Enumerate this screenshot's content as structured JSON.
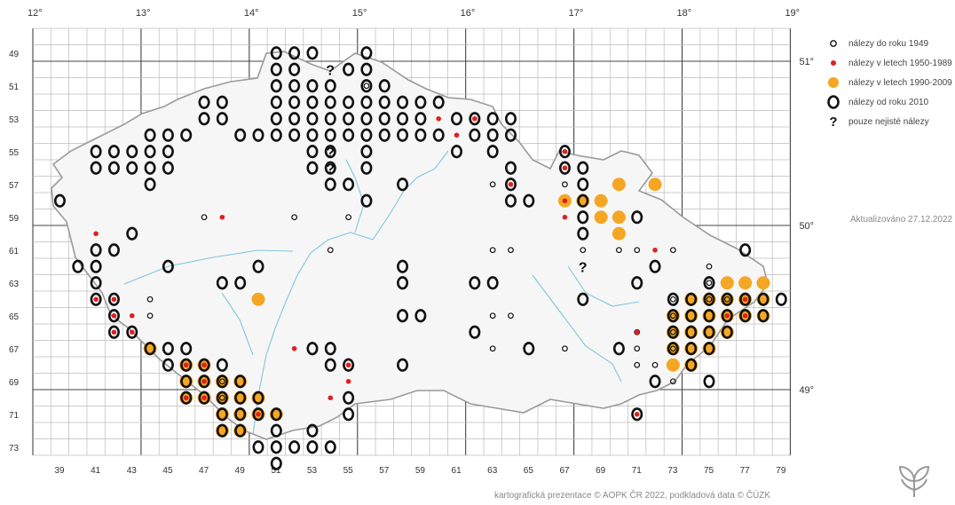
{
  "map": {
    "lon_labels": [
      "12°",
      "13°",
      "14°",
      "15°",
      "16°",
      "17°",
      "18°",
      "19°"
    ],
    "lat_labels": [
      "51°",
      "50°",
      "49°"
    ],
    "row_labels": [
      "49",
      "51",
      "53",
      "55",
      "57",
      "59",
      "61",
      "63",
      "65",
      "67",
      "69",
      "71",
      "73"
    ],
    "col_labels": [
      "39",
      "41",
      "43",
      "45",
      "47",
      "49",
      "51",
      "53",
      "55",
      "57",
      "59",
      "61",
      "63",
      "65",
      "67",
      "69",
      "71",
      "73",
      "75",
      "77",
      "79"
    ]
  },
  "legend": {
    "items": [
      {
        "symbol": "small-ring",
        "label": "nálezy do roku 1949"
      },
      {
        "symbol": "red-dot",
        "label": "nálezy v letech 1950-1989"
      },
      {
        "symbol": "orange-dot",
        "label": "nálezy v letech 1990-2009"
      },
      {
        "symbol": "big-ring",
        "label": "nálezy od roku 2010"
      },
      {
        "symbol": "question",
        "label": "pouze nejisté nálezy"
      }
    ]
  },
  "update_text": "Aktualizováno 27.12.2022",
  "credit_text": "kartografická prezentace © AOPK ČR 2022, podkladová data © ČÚZK",
  "colors": {
    "orange": "#f5a623",
    "red": "#e02020",
    "ring": "#111111",
    "river": "#7fc8dd",
    "border": "#999999"
  },
  "records": {
    "ring": [
      [
        49,
        51
      ],
      [
        49,
        52
      ],
      [
        49,
        53
      ],
      [
        49,
        56
      ],
      [
        50,
        51
      ],
      [
        50,
        52
      ],
      [
        50,
        55
      ],
      [
        50,
        56
      ],
      [
        51,
        51
      ],
      [
        51,
        52
      ],
      [
        51,
        53
      ],
      [
        51,
        54
      ],
      [
        51,
        56
      ],
      [
        51,
        57
      ],
      [
        52,
        47
      ],
      [
        52,
        48
      ],
      [
        52,
        51
      ],
      [
        52,
        52
      ],
      [
        52,
        53
      ],
      [
        52,
        54
      ],
      [
        52,
        55
      ],
      [
        52,
        56
      ],
      [
        52,
        57
      ],
      [
        52,
        58
      ],
      [
        52,
        59
      ],
      [
        52,
        60
      ],
      [
        53,
        47
      ],
      [
        53,
        48
      ],
      [
        53,
        51
      ],
      [
        53,
        52
      ],
      [
        53,
        53
      ],
      [
        53,
        54
      ],
      [
        53,
        55
      ],
      [
        53,
        56
      ],
      [
        53,
        57
      ],
      [
        53,
        58
      ],
      [
        53,
        59
      ],
      [
        53,
        61
      ],
      [
        53,
        62
      ],
      [
        53,
        63
      ],
      [
        53,
        64
      ],
      [
        54,
        44
      ],
      [
        54,
        45
      ],
      [
        54,
        46
      ],
      [
        54,
        49
      ],
      [
        54,
        50
      ],
      [
        54,
        51
      ],
      [
        54,
        52
      ],
      [
        54,
        53
      ],
      [
        54,
        54
      ],
      [
        54,
        55
      ],
      [
        54,
        56
      ],
      [
        54,
        57
      ],
      [
        54,
        58
      ],
      [
        54,
        59
      ],
      [
        54,
        60
      ],
      [
        54,
        62
      ],
      [
        54,
        63
      ],
      [
        54,
        64
      ],
      [
        55,
        41
      ],
      [
        55,
        42
      ],
      [
        55,
        43
      ],
      [
        55,
        44
      ],
      [
        55,
        45
      ],
      [
        55,
        53
      ],
      [
        55,
        54
      ],
      [
        55,
        56
      ],
      [
        55,
        61
      ],
      [
        55,
        63
      ],
      [
        55,
        67
      ],
      [
        56,
        41
      ],
      [
        56,
        42
      ],
      [
        56,
        43
      ],
      [
        56,
        44
      ],
      [
        56,
        45
      ],
      [
        56,
        53
      ],
      [
        56,
        54
      ],
      [
        56,
        56
      ],
      [
        56,
        64
      ],
      [
        56,
        67
      ],
      [
        56,
        68
      ],
      [
        57,
        44
      ],
      [
        57,
        54
      ],
      [
        57,
        55
      ],
      [
        57,
        58
      ],
      [
        57,
        64
      ],
      [
        57,
        68
      ],
      [
        58,
        39
      ],
      [
        58,
        56
      ],
      [
        58,
        64
      ],
      [
        58,
        65
      ],
      [
        58,
        68
      ],
      [
        59,
        68
      ],
      [
        59,
        71
      ],
      [
        60,
        43
      ],
      [
        60,
        68
      ],
      [
        61,
        41
      ],
      [
        61,
        42
      ],
      [
        61,
        77
      ],
      [
        62,
        40
      ],
      [
        62,
        41
      ],
      [
        62,
        45
      ],
      [
        62,
        50
      ],
      [
        62,
        58
      ],
      [
        62,
        72
      ],
      [
        63,
        41
      ],
      [
        63,
        48
      ],
      [
        63,
        49
      ],
      [
        63,
        58
      ],
      [
        63,
        62
      ],
      [
        63,
        63
      ],
      [
        63,
        71
      ],
      [
        63,
        75
      ],
      [
        64,
        41
      ],
      [
        64,
        42
      ],
      [
        64,
        68
      ],
      [
        64,
        73
      ],
      [
        64,
        74
      ],
      [
        64,
        75
      ],
      [
        64,
        76
      ],
      [
        64,
        77
      ],
      [
        64,
        78
      ],
      [
        64,
        79
      ],
      [
        65,
        42
      ],
      [
        65,
        58
      ],
      [
        65,
        59
      ],
      [
        65,
        73
      ],
      [
        65,
        74
      ],
      [
        65,
        75
      ],
      [
        65,
        76
      ],
      [
        65,
        77
      ],
      [
        65,
        78
      ],
      [
        66,
        42
      ],
      [
        66,
        43
      ],
      [
        66,
        62
      ],
      [
        66,
        73
      ],
      [
        66,
        74
      ],
      [
        66,
        75
      ],
      [
        66,
        76
      ],
      [
        67,
        44
      ],
      [
        67,
        45
      ],
      [
        67,
        46
      ],
      [
        67,
        53
      ],
      [
        67,
        54
      ],
      [
        67,
        65
      ],
      [
        67,
        70
      ],
      [
        67,
        73
      ],
      [
        67,
        74
      ],
      [
        67,
        75
      ],
      [
        68,
        45
      ],
      [
        68,
        46
      ],
      [
        68,
        47
      ],
      [
        68,
        48
      ],
      [
        68,
        54
      ],
      [
        68,
        55
      ],
      [
        68,
        58
      ],
      [
        68,
        74
      ],
      [
        69,
        46
      ],
      [
        69,
        47
      ],
      [
        69,
        48
      ],
      [
        69,
        49
      ],
      [
        69,
        72
      ],
      [
        69,
        75
      ],
      [
        70,
        46
      ],
      [
        70,
        47
      ],
      [
        70,
        48
      ],
      [
        70,
        49
      ],
      [
        70,
        50
      ],
      [
        70,
        55
      ],
      [
        71,
        48
      ],
      [
        71,
        49
      ],
      [
        71,
        50
      ],
      [
        71,
        51
      ],
      [
        71,
        55
      ],
      [
        71,
        71
      ],
      [
        72,
        48
      ],
      [
        72,
        49
      ],
      [
        72,
        51
      ],
      [
        72,
        53
      ],
      [
        73,
        50
      ],
      [
        73,
        51
      ],
      [
        73,
        52
      ],
      [
        73,
        53
      ],
      [
        73,
        54
      ],
      [
        74,
        51
      ]
    ],
    "orange": [
      [
        57,
        70
      ],
      [
        57,
        72
      ],
      [
        58,
        67
      ],
      [
        58,
        68
      ],
      [
        58,
        69
      ],
      [
        59,
        69
      ],
      [
        59,
        70
      ],
      [
        60,
        70
      ],
      [
        63,
        76
      ],
      [
        63,
        77
      ],
      [
        63,
        78
      ],
      [
        64,
        50
      ],
      [
        64,
        74
      ],
      [
        64,
        75
      ],
      [
        64,
        76
      ],
      [
        64,
        77
      ],
      [
        64,
        78
      ],
      [
        65,
        73
      ],
      [
        65,
        74
      ],
      [
        65,
        75
      ],
      [
        65,
        76
      ],
      [
        65,
        77
      ],
      [
        65,
        78
      ],
      [
        66,
        73
      ],
      [
        66,
        74
      ],
      [
        66,
        75
      ],
      [
        66,
        76
      ],
      [
        67,
        44
      ],
      [
        67,
        73
      ],
      [
        67,
        74
      ],
      [
        67,
        75
      ],
      [
        68,
        46
      ],
      [
        68,
        47
      ],
      [
        68,
        74
      ],
      [
        68,
        73
      ],
      [
        69,
        46
      ],
      [
        69,
        47
      ],
      [
        69,
        48
      ],
      [
        69,
        49
      ],
      [
        70,
        46
      ],
      [
        70,
        47
      ],
      [
        70,
        48
      ],
      [
        70,
        49
      ],
      [
        70,
        50
      ],
      [
        71,
        48
      ],
      [
        71,
        49
      ],
      [
        71,
        50
      ],
      [
        71,
        51
      ],
      [
        72,
        48
      ],
      [
        72,
        49
      ]
    ],
    "red": [
      [
        53,
        60
      ],
      [
        53,
        62
      ],
      [
        54,
        61
      ],
      [
        55,
        67
      ],
      [
        56,
        67
      ],
      [
        57,
        64
      ],
      [
        58,
        67
      ],
      [
        59,
        48
      ],
      [
        59,
        67
      ],
      [
        60,
        41
      ],
      [
        61,
        72
      ],
      [
        64,
        41
      ],
      [
        64,
        42
      ],
      [
        64,
        77
      ],
      [
        65,
        42
      ],
      [
        65,
        43
      ],
      [
        65,
        76
      ],
      [
        65,
        77
      ],
      [
        66,
        42
      ],
      [
        66,
        43
      ],
      [
        66,
        71
      ],
      [
        67,
        52
      ],
      [
        68,
        46
      ],
      [
        68,
        47
      ],
      [
        68,
        55
      ],
      [
        69,
        47
      ],
      [
        69,
        55
      ],
      [
        70,
        46
      ],
      [
        70,
        47
      ],
      [
        70,
        54
      ],
      [
        71,
        50
      ],
      [
        71,
        71
      ]
    ],
    "small": [
      [
        51,
        56
      ],
      [
        57,
        63
      ],
      [
        57,
        67
      ],
      [
        59,
        47
      ],
      [
        59,
        52
      ],
      [
        59,
        55
      ],
      [
        61,
        54
      ],
      [
        61,
        63
      ],
      [
        61,
        64
      ],
      [
        61,
        68
      ],
      [
        61,
        70
      ],
      [
        61,
        71
      ],
      [
        61,
        73
      ],
      [
        62,
        75
      ],
      [
        64,
        44
      ],
      [
        64,
        73
      ],
      [
        65,
        44
      ],
      [
        65,
        63
      ],
      [
        65,
        64
      ],
      [
        65,
        73
      ],
      [
        66,
        71
      ],
      [
        66,
        73
      ],
      [
        67,
        63
      ],
      [
        67,
        67
      ],
      [
        67,
        71
      ],
      [
        67,
        73
      ],
      [
        68,
        71
      ],
      [
        68,
        72
      ],
      [
        69,
        73
      ],
      [
        69,
        48
      ],
      [
        70,
        48
      ],
      [
        64,
        75
      ],
      [
        64,
        76
      ],
      [
        63,
        75
      ]
    ],
    "question": [
      [
        50,
        54
      ],
      [
        55,
        54
      ],
      [
        56,
        54
      ],
      [
        62,
        68
      ]
    ]
  }
}
